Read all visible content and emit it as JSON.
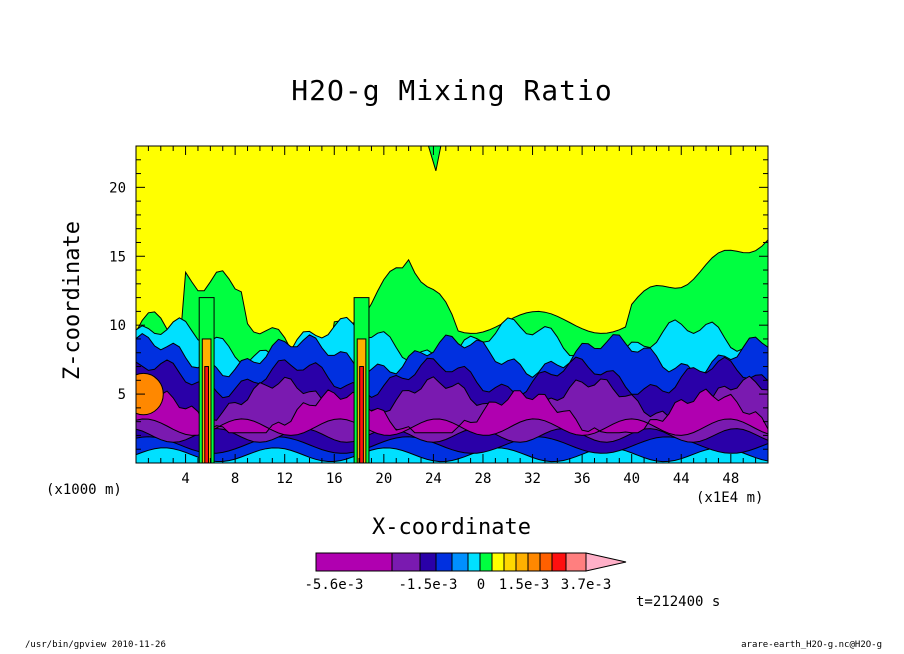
{
  "chart_data": {
    "type": "heatmap",
    "title": "H2O-g Mixing Ratio",
    "xlabel": "X-coordinate",
    "ylabel": "Z-coordinate",
    "x_multiplier": "(x1E4 m)",
    "y_multiplier": "(x1000 m)",
    "xlim": [
      0,
      51
    ],
    "ylim": [
      0,
      23
    ],
    "x_ticks": [
      4,
      8,
      12,
      16,
      20,
      24,
      28,
      32,
      36,
      40,
      44,
      48
    ],
    "y_ticks": [
      5,
      10,
      15,
      20
    ],
    "colorbar": {
      "colors": [
        "#b000b0",
        "#7a1ab0",
        "#2a00a8",
        "#0030e0",
        "#0090ff",
        "#00e0ff",
        "#00ff40",
        "#ffff00",
        "#ffd800",
        "#ffb000",
        "#ff8800",
        "#ff6000",
        "#ff1010",
        "#ff7f7f",
        "#ffb0c8"
      ],
      "labels": [
        "-5.6e-3",
        "-1.5e-3",
        "0",
        "1.5e-3",
        "3.7e-3"
      ]
    },
    "time_label": "t=212400 s"
  },
  "footer": {
    "left": "/usr/bin/gpview  2010-11-26",
    "right": "arare-earth_H2O-g.nc@H2O-g"
  }
}
